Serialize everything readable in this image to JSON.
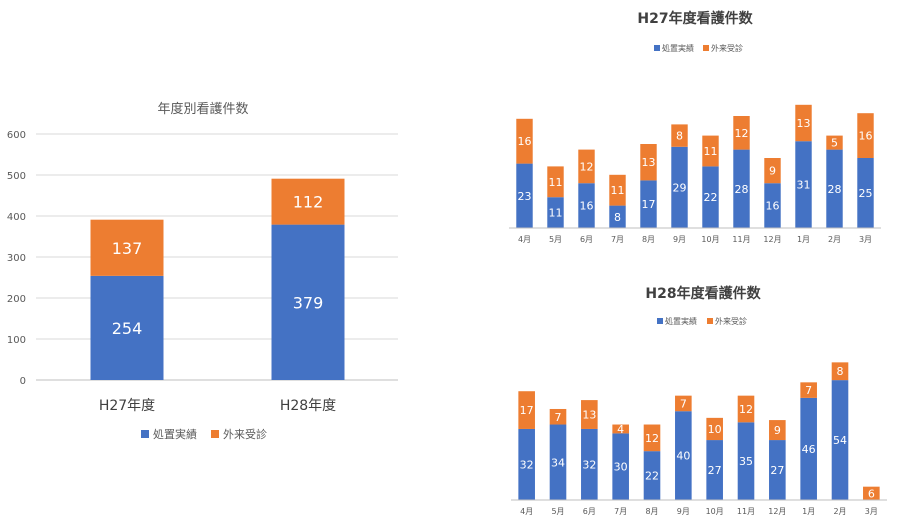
{
  "colors": {
    "series1": "#4472c4",
    "series2": "#ed7d31",
    "grid": "#d9d9d9",
    "axis": "#bfbfbf"
  },
  "chart_data": [
    {
      "type": "bar",
      "stacked": true,
      "title": "年度別看護件数",
      "categories": [
        "H27年度",
        "H28年度"
      ],
      "series": [
        {
          "name": "処置実績",
          "values": [
            254,
            379
          ]
        },
        {
          "name": "外来受診",
          "values": [
            137,
            112
          ]
        }
      ],
      "ylim": [
        0,
        600
      ],
      "yticks": [
        "0",
        "100",
        "200",
        "300",
        "400",
        "500",
        "600"
      ],
      "grid": true,
      "legend": "bottom"
    },
    {
      "type": "bar",
      "stacked": true,
      "title": "H27年度看護件数",
      "categories": [
        "4月",
        "5月",
        "6月",
        "7月",
        "8月",
        "9月",
        "10月",
        "11月",
        "12月",
        "1月",
        "2月",
        "3月"
      ],
      "series": [
        {
          "name": "処置実績",
          "values": [
            23,
            11,
            16,
            8,
            17,
            29,
            22,
            28,
            16,
            31,
            28,
            25
          ]
        },
        {
          "name": "外来受診",
          "values": [
            16,
            11,
            12,
            11,
            13,
            8,
            11,
            12,
            9,
            13,
            5,
            16
          ]
        }
      ],
      "grid": false,
      "legend": "top"
    },
    {
      "type": "bar",
      "stacked": true,
      "title": "H28年度看護件数",
      "categories": [
        "4月",
        "5月",
        "6月",
        "7月",
        "8月",
        "9月",
        "10月",
        "11月",
        "12月",
        "1月",
        "2月",
        "3月"
      ],
      "series": [
        {
          "name": "処置実績",
          "values": [
            32,
            34,
            32,
            30,
            22,
            40,
            27,
            35,
            27,
            46,
            54,
            0
          ]
        },
        {
          "name": "外来受診",
          "values": [
            17,
            7,
            13,
            4,
            12,
            7,
            10,
            12,
            9,
            7,
            8,
            6
          ]
        }
      ],
      "grid": false,
      "legend": "top"
    }
  ]
}
